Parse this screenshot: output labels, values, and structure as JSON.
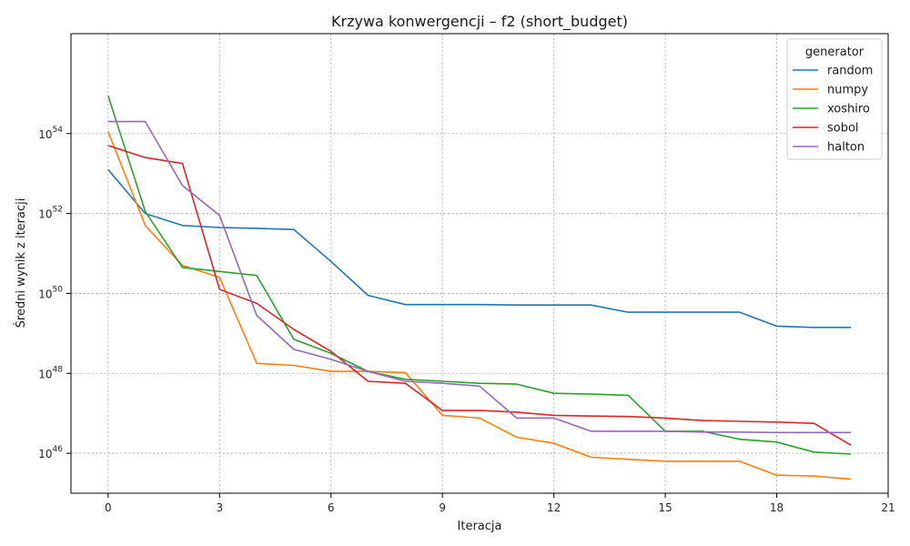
{
  "chart_data": {
    "type": "line",
    "title": "Krzywa konwergencji – f2 (short_budget)",
    "xlabel": "Iteracja",
    "ylabel": "Średni wynik z iteracji",
    "yscale": "log",
    "xlim": [
      -1,
      21
    ],
    "ylim_log10": [
      45.0,
      56.5
    ],
    "x_ticks": [
      0,
      3,
      6,
      9,
      12,
      15,
      18,
      21
    ],
    "y_ticks": [
      {
        "base": "10",
        "exp": "46",
        "value_log10": 46
      },
      {
        "base": "10",
        "exp": "48",
        "value_log10": 48
      },
      {
        "base": "10",
        "exp": "50",
        "value_log10": 50
      },
      {
        "base": "10",
        "exp": "52",
        "value_log10": 52
      },
      {
        "base": "10",
        "exp": "54",
        "value_log10": 54
      }
    ],
    "grid": true,
    "legend": {
      "title": "generator",
      "placement": "top-right"
    },
    "x": [
      0,
      1,
      2,
      3,
      4,
      5,
      6,
      7,
      8,
      9,
      10,
      11,
      12,
      13,
      14,
      15,
      16,
      17,
      18,
      19,
      20
    ],
    "series": [
      {
        "name": "random",
        "color": "#1f77b4",
        "log10_values": [
          53.1,
          52.0,
          51.7,
          51.65,
          51.63,
          51.6,
          50.8,
          49.95,
          49.72,
          49.72,
          49.72,
          49.71,
          49.71,
          49.71,
          49.53,
          49.53,
          49.53,
          49.53,
          49.18,
          49.15,
          49.15
        ]
      },
      {
        "name": "numpy",
        "color": "#ff7f0e",
        "log10_values": [
          54.05,
          51.7,
          50.7,
          50.4,
          48.25,
          48.2,
          48.05,
          48.05,
          48.02,
          46.95,
          46.88,
          46.4,
          46.25,
          45.9,
          45.85,
          45.8,
          45.8,
          45.8,
          45.45,
          45.43,
          45.35
        ]
      },
      {
        "name": "xoshiro",
        "color": "#2ca02c",
        "log10_values": [
          54.95,
          52.05,
          50.65,
          50.55,
          50.45,
          48.85,
          48.5,
          48.05,
          47.85,
          47.8,
          47.75,
          47.73,
          47.5,
          47.48,
          47.45,
          46.55,
          46.55,
          46.35,
          46.28,
          46.03,
          45.98
        ]
      },
      {
        "name": "sobol",
        "color": "#d62728",
        "log10_values": [
          53.7,
          53.4,
          53.25,
          50.1,
          49.75,
          49.1,
          48.55,
          47.8,
          47.75,
          47.07,
          47.07,
          47.03,
          46.95,
          46.93,
          46.92,
          46.88,
          46.82,
          46.8,
          46.78,
          46.75,
          46.2
        ]
      },
      {
        "name": "halton",
        "color": "#9467bd",
        "log10_values": [
          54.3,
          54.3,
          52.7,
          51.95,
          49.45,
          48.6,
          48.35,
          48.05,
          47.8,
          47.75,
          47.68,
          46.88,
          46.88,
          46.55,
          46.55,
          46.55,
          46.53,
          46.53,
          46.52,
          46.52,
          46.52
        ]
      }
    ]
  }
}
